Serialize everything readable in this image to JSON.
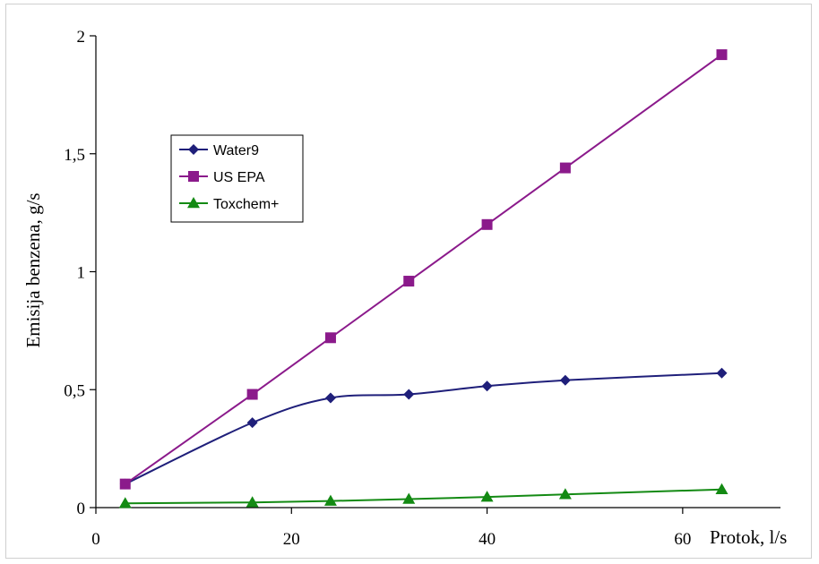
{
  "chart_data": {
    "type": "line",
    "xlabel": "Protok, l/s",
    "ylabel": "Emisija benzena, g/s",
    "xlim": [
      0,
      70
    ],
    "ylim": [
      0,
      2
    ],
    "x_ticks": [
      "0",
      "20",
      "40",
      "60"
    ],
    "y_ticks": [
      "0",
      "0,5",
      "1",
      "1,5",
      "2"
    ],
    "grid": false,
    "legend_position": "upper-left",
    "series": [
      {
        "name": "Water9",
        "color": "#1f1f7a",
        "marker": "diamond",
        "smooth": true,
        "x": [
          3,
          16,
          24,
          32,
          40,
          48,
          64
        ],
        "y": [
          0.1,
          0.36,
          0.465,
          0.48,
          0.515,
          0.54,
          0.57
        ]
      },
      {
        "name": "US EPA",
        "color": "#8b1a8b",
        "marker": "square",
        "smooth": false,
        "x": [
          3,
          16,
          24,
          32,
          40,
          48,
          64
        ],
        "y": [
          0.1,
          0.48,
          0.72,
          0.96,
          1.2,
          1.44,
          1.92
        ]
      },
      {
        "name": "Toxchem+",
        "color": "#138a13",
        "marker": "triangle",
        "smooth": false,
        "x": [
          3,
          16,
          24,
          32,
          40,
          48,
          64
        ],
        "y": [
          0.018,
          0.022,
          0.028,
          0.036,
          0.045,
          0.056,
          0.077
        ]
      }
    ]
  }
}
